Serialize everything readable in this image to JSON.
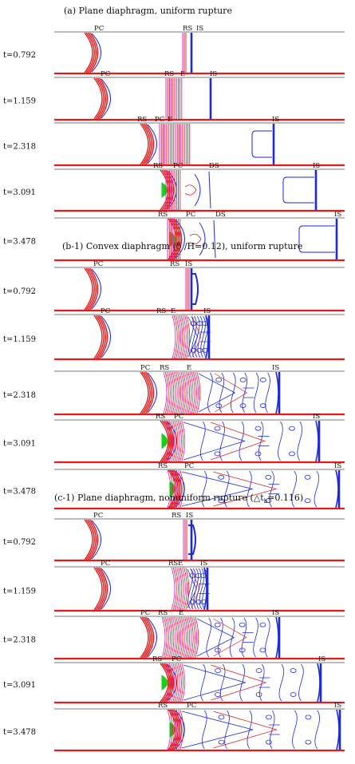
{
  "colors": {
    "red": "#e21b1b",
    "blue": "#1f2ad6",
    "magenta": "#d21ad2",
    "green": "#18d018",
    "frame": "#7a7a7a"
  },
  "sections": [
    {
      "title": "(a) Plane diaphragm, uniform rupture",
      "panels": [
        {
          "time": "t=0.792",
          "labels": [
            "PC",
            "RS",
            "IS"
          ]
        },
        {
          "time": "t=1.159",
          "labels": [
            "PC",
            "RS",
            "E",
            "IS"
          ]
        },
        {
          "time": "t=2.318",
          "labels": [
            "RS",
            "PC",
            "E",
            "IS"
          ]
        },
        {
          "time": "t=3.091",
          "labels": [
            "RS",
            "PC",
            "DS",
            "IS"
          ]
        },
        {
          "time": "t=3.478",
          "labels": [
            "RS",
            "PC",
            "DS",
            "IS"
          ]
        }
      ]
    },
    {
      "title": "(b-1) Convex diaphragm (δ /H=0.12), uniform rupture",
      "panels": [
        {
          "time": "t=0.792",
          "labels": [
            "PC",
            "RS",
            "IS"
          ]
        },
        {
          "time": "t=1.159",
          "labels": [
            "PC",
            "RS",
            "E",
            "IS"
          ]
        },
        {
          "time": "t=2.318",
          "labels": [
            "PC",
            "RS",
            "E",
            "IS"
          ]
        },
        {
          "time": "t=3.091",
          "labels": [
            "RS",
            "PC",
            "IS"
          ]
        },
        {
          "time": "t=3.478",
          "labels": [
            "RS",
            "PC",
            "IS"
          ]
        }
      ]
    },
    {
      "title": "(c-1) Plane diaphragm, nonuniform rupture (△t",
      "title_sub": "b",
      "title_end": "=0.116)",
      "panels": [
        {
          "time": "t=0.792",
          "labels": [
            "PC",
            "RS",
            "IS"
          ]
        },
        {
          "time": "t=1.159",
          "labels": [
            "PC",
            "RS",
            "E",
            "IS"
          ]
        },
        {
          "time": "t=2.318",
          "labels": [
            "PC",
            "RS",
            "E",
            "IS"
          ]
        },
        {
          "time": "t=3.091",
          "labels": [
            "RS",
            "PC",
            "IS"
          ]
        },
        {
          "time": "t=3.478",
          "labels": [
            "RS",
            "PC",
            "IS"
          ]
        }
      ]
    }
  ]
}
